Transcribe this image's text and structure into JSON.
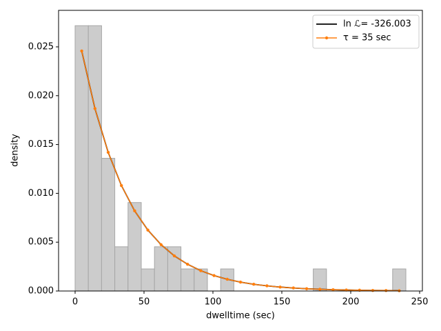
{
  "chart_data": {
    "type": "histogram",
    "xlabel": "dwelltime (sec)",
    "ylabel": "density",
    "bins": [
      0,
      9.6,
      19.2,
      28.8,
      38.4,
      48,
      57.6,
      67.2,
      76.8,
      86.4,
      96,
      105.6,
      115.2,
      124.8,
      134.4,
      144,
      153.6,
      163.2,
      172.8,
      182.4,
      192,
      201.6,
      211.2,
      220.8,
      230.4,
      240
    ],
    "values": [
      0.02717,
      0.02717,
      0.01359,
      0.00453,
      0.00906,
      0.00226,
      0.00453,
      0.00453,
      0.00226,
      0.00226,
      0,
      0.00226,
      0,
      0,
      0,
      0,
      0,
      0,
      0.00226,
      0,
      0,
      0,
      0,
      0,
      0.00226
    ],
    "color": "#cccccc",
    "edgecolor": "#a6a6a6",
    "series": [
      {
        "name": "ln ℒ= -326.003",
        "color": "#000000",
        "marker": false,
        "x": [
          4.8,
          14.4,
          24,
          33.6,
          43.2,
          52.8,
          62.4,
          72,
          81.6,
          91.2,
          100.8,
          110.4,
          120,
          129.6,
          139.2,
          148.8,
          158.4,
          168,
          177.6,
          187.2,
          196.8,
          206.4,
          216,
          225.6,
          235.2
        ],
        "values": [
          0.02458,
          0.01868,
          0.0142,
          0.0108,
          0.00821,
          0.00624,
          0.00474,
          0.0036,
          0.00274,
          0.00208,
          0.00158,
          0.0012,
          0.00091,
          0.00069,
          0.00053,
          0.0004,
          0.00031,
          0.00023,
          0.00018,
          0.00013,
          0.0001,
          8e-05,
          6e-05,
          5e-05,
          3e-05
        ]
      },
      {
        "name": "τ = 35 sec",
        "color": "#ff7f0e",
        "marker": true,
        "x": [
          4.8,
          14.4,
          24,
          33.6,
          43.2,
          52.8,
          62.4,
          72,
          81.6,
          91.2,
          100.8,
          110.4,
          120,
          129.6,
          139.2,
          148.8,
          158.4,
          168,
          177.6,
          187.2,
          196.8,
          206.4,
          216,
          225.6,
          235.2
        ],
        "values": [
          0.02458,
          0.01868,
          0.0142,
          0.0108,
          0.00821,
          0.00624,
          0.00474,
          0.0036,
          0.00274,
          0.00208,
          0.00158,
          0.0012,
          0.00091,
          0.00069,
          0.00053,
          0.0004,
          0.00031,
          0.00023,
          0.00018,
          0.00013,
          0.0001,
          8e-05,
          6e-05,
          5e-05,
          3e-05
        ]
      }
    ],
    "xlim": [
      -12,
      252
    ],
    "ylim": [
      0,
      0.02874
    ],
    "xticks": [
      0,
      50,
      100,
      150,
      200,
      250
    ],
    "yticks": [
      {
        "value": 0,
        "label": "0.000"
      },
      {
        "value": 0.005,
        "label": "0.005"
      },
      {
        "value": 0.01,
        "label": "0.010"
      },
      {
        "value": 0.015,
        "label": "0.015"
      },
      {
        "value": 0.02,
        "label": "0.020"
      },
      {
        "value": 0.025,
        "label": "0.025"
      }
    ],
    "legend": "upper right"
  }
}
